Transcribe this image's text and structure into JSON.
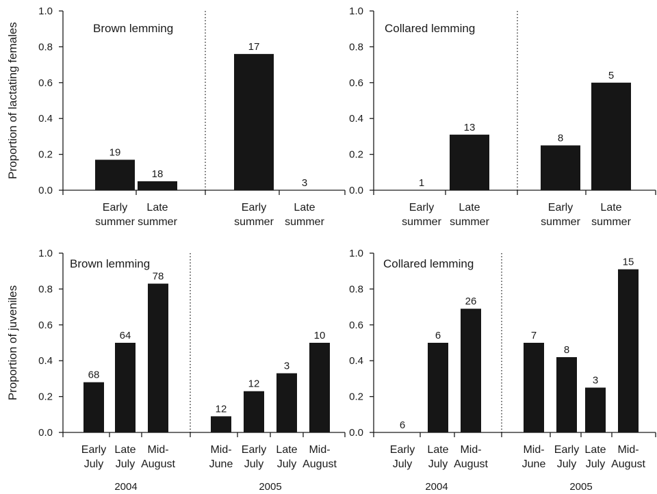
{
  "chart_data": [
    {
      "type": "bar",
      "panel": "top-left",
      "title": "Brown lemming",
      "ylabel": "Proportion of lactating females",
      "ylim": [
        0,
        1.0
      ],
      "yticks": [
        "0.0",
        "0.2",
        "0.4",
        "0.6",
        "0.8",
        "1.0"
      ],
      "groups": [
        {
          "year": "",
          "categories": [
            {
              "label": [
                "Early",
                "summer"
              ],
              "value": 0.17,
              "n": "19"
            },
            {
              "label": [
                "Late",
                "summer"
              ],
              "value": 0.05,
              "n": "18"
            }
          ]
        },
        {
          "year": "",
          "categories": [
            {
              "label": [
                "Early",
                "summer"
              ],
              "value": 0.76,
              "n": "17"
            },
            {
              "label": [
                "Late",
                "summer"
              ],
              "value": 0.0,
              "n": "3"
            }
          ]
        }
      ]
    },
    {
      "type": "bar",
      "panel": "top-right",
      "title": "Collared lemming",
      "ylabel": "",
      "ylim": [
        0,
        1.0
      ],
      "yticks": [
        "0.0",
        "0.2",
        "0.4",
        "0.6",
        "0.8",
        "1.0"
      ],
      "groups": [
        {
          "year": "",
          "categories": [
            {
              "label": [
                "Early",
                "summer"
              ],
              "value": 0.0,
              "n": "1"
            },
            {
              "label": [
                "Late",
                "summer"
              ],
              "value": 0.31,
              "n": "13"
            }
          ]
        },
        {
          "year": "",
          "categories": [
            {
              "label": [
                "Early",
                "summer"
              ],
              "value": 0.25,
              "n": "8"
            },
            {
              "label": [
                "Late",
                "summer"
              ],
              "value": 0.6,
              "n": "5"
            }
          ]
        }
      ]
    },
    {
      "type": "bar",
      "panel": "bottom-left",
      "title": "Brown lemming",
      "ylabel": "Proportion of juveniles",
      "ylim": [
        0,
        1.0
      ],
      "yticks": [
        "0.0",
        "0.2",
        "0.4",
        "0.6",
        "0.8",
        "1.0"
      ],
      "groups": [
        {
          "year": "2004",
          "categories": [
            {
              "label": [
                "Early",
                "July"
              ],
              "value": 0.28,
              "n": "68"
            },
            {
              "label": [
                "Late",
                "July"
              ],
              "value": 0.5,
              "n": "64"
            },
            {
              "label": [
                "Mid-",
                "August"
              ],
              "value": 0.83,
              "n": "78"
            }
          ]
        },
        {
          "year": "2005",
          "categories": [
            {
              "label": [
                "Mid-",
                "June"
              ],
              "value": 0.09,
              "n": "12"
            },
            {
              "label": [
                "Early",
                "July"
              ],
              "value": 0.23,
              "n": "12"
            },
            {
              "label": [
                "Late",
                "July"
              ],
              "value": 0.33,
              "n": "3"
            },
            {
              "label": [
                "Mid-",
                "August"
              ],
              "value": 0.5,
              "n": "10"
            }
          ]
        }
      ]
    },
    {
      "type": "bar",
      "panel": "bottom-right",
      "title": "Collared lemming",
      "ylabel": "",
      "ylim": [
        0,
        1.0
      ],
      "yticks": [
        "0.0",
        "0.2",
        "0.4",
        "0.6",
        "0.8",
        "1.0"
      ],
      "groups": [
        {
          "year": "2004",
          "categories": [
            {
              "label": [
                "Early",
                "July"
              ],
              "value": 0.0,
              "n": "6"
            },
            {
              "label": [
                "Late",
                "July"
              ],
              "value": 0.5,
              "n": "6"
            },
            {
              "label": [
                "Mid-",
                "August"
              ],
              "value": 0.69,
              "n": "26"
            }
          ]
        },
        {
          "year": "2005",
          "categories": [
            {
              "label": [
                "Mid-",
                "June"
              ],
              "value": 0.5,
              "n": "7"
            },
            {
              "label": [
                "Early",
                "July"
              ],
              "value": 0.42,
              "n": "8"
            },
            {
              "label": [
                "Late",
                "July"
              ],
              "value": 0.25,
              "n": "3"
            },
            {
              "label": [
                "Mid-",
                "August"
              ],
              "value": 0.91,
              "n": "15"
            }
          ]
        }
      ]
    }
  ]
}
